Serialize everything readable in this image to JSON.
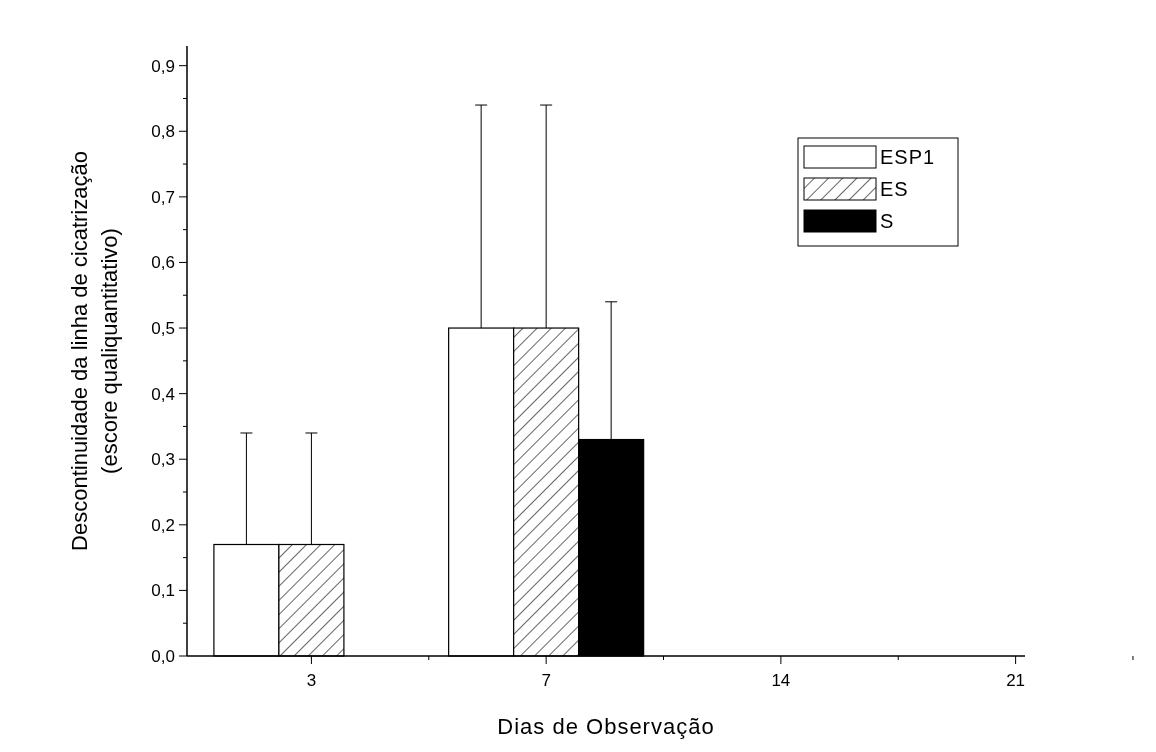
{
  "chart_data": {
    "type": "bar",
    "xlabel": "Dias de Observação",
    "ylabel": "Descontinuidade da linha de cicatrização\n(escore qualiquantitativo)",
    "categories": [
      "3",
      "7",
      "14",
      "21"
    ],
    "series": [
      {
        "name": "ESP1",
        "color": "#ffffff",
        "values": [
          0.17,
          0.5,
          0,
          0
        ],
        "errors": [
          [
            0.17,
            0.34
          ],
          [
            0.5,
            0.84
          ],
          null,
          null
        ]
      },
      {
        "name": "ES",
        "color": "#000000",
        "values": [
          0.17,
          0.5,
          0,
          0
        ],
        "errors": [
          [
            0.17,
            0.34
          ],
          [
            0.5,
            0.84
          ],
          null,
          null
        ]
      },
      {
        "name": "S",
        "color": "#000000",
        "values": [
          0,
          0.33,
          0,
          0
        ],
        "errors": [
          null,
          [
            0.33,
            0.54
          ],
          null,
          null
        ]
      }
    ],
    "ylim": [
      0,
      0.93
    ],
    "yticks": [
      {
        "value": 0,
        "label": "0,0"
      },
      {
        "value": 0.05,
        "label": null
      },
      {
        "value": 0.1,
        "label": "0,1"
      },
      {
        "value": 0.15,
        "label": null
      },
      {
        "value": 0.2,
        "label": "0,2"
      },
      {
        "value": 0.25,
        "label": null
      },
      {
        "value": 0.3,
        "label": "0,3"
      },
      {
        "value": 0.35,
        "label": null
      },
      {
        "value": 0.4,
        "label": "0,4"
      },
      {
        "value": 0.45,
        "label": null
      },
      {
        "value": 0.5,
        "label": "0,5"
      },
      {
        "value": 0.55,
        "label": null
      },
      {
        "value": 0.6,
        "label": "0,6"
      },
      {
        "value": 0.65,
        "label": null
      },
      {
        "value": 0.7,
        "label": "0,7"
      },
      {
        "value": 0.75,
        "label": null
      },
      {
        "value": 0.8,
        "label": "0,8"
      },
      {
        "value": 0.85,
        "label": null
      },
      {
        "value": 0.9,
        "label": "0,9"
      }
    ],
    "grid": false,
    "legend": "top right"
  }
}
